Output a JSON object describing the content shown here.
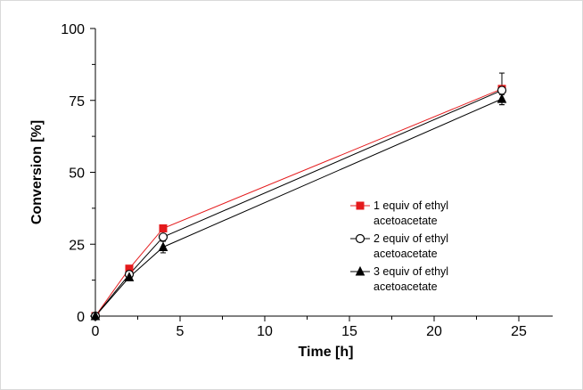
{
  "chart_data": {
    "type": "line",
    "xlabel": "Time [h]",
    "ylabel": "Conversion [%]",
    "xlim": [
      0,
      27
    ],
    "ylim": [
      0,
      100
    ],
    "x_ticks": [
      0,
      5,
      10,
      15,
      20,
      25
    ],
    "x_tick_labels": [
      "0",
      "5",
      "10",
      "15",
      "20",
      "25"
    ],
    "y_ticks": [
      0,
      25,
      50,
      75,
      100
    ],
    "y_tick_labels": [
      "0",
      "25",
      "50",
      "75",
      "100"
    ],
    "grid": false,
    "legend_position": "right-center",
    "series": [
      {
        "name_lines": [
          "1 equiv of ethyl",
          "acetoacetate"
        ],
        "marker": "filled-square",
        "color": "#e41a1c",
        "line_color": "#e41a1c",
        "x": [
          0,
          2,
          4,
          24
        ],
        "y": [
          0,
          16.5,
          30.5,
          79
        ],
        "err": [
          0,
          0,
          0,
          5.5
        ]
      },
      {
        "name_lines": [
          "2 equiv of ethyl",
          "acetoacetate"
        ],
        "marker": "open-circle",
        "color": "#000000",
        "line_color": "#000000",
        "x": [
          0,
          2,
          4,
          24
        ],
        "y": [
          0,
          14.5,
          27.5,
          78.5
        ],
        "err": [
          0,
          0,
          0,
          1.5
        ]
      },
      {
        "name_lines": [
          "3 equiv of ethyl",
          "acetoacetate"
        ],
        "marker": "filled-triangle",
        "color": "#000000",
        "line_color": "#000000",
        "x": [
          0,
          2,
          4,
          24
        ],
        "y": [
          0,
          13.5,
          24,
          75.5
        ],
        "err": [
          0,
          0,
          2,
          2
        ]
      }
    ]
  }
}
